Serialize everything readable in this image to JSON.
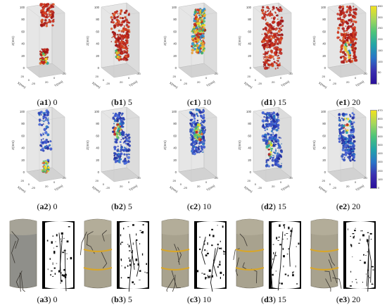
{
  "rows": [
    {
      "kind": "scatter3d",
      "captions": [
        {
          "id": "a1",
          "label": "0"
        },
        {
          "id": "b1",
          "label": "5"
        },
        {
          "id": "c1",
          "label": "10"
        },
        {
          "id": "d1",
          "label": "15"
        },
        {
          "id": "e1",
          "label": "20"
        }
      ],
      "colorbar_ticks": [
        "650",
        "300",
        "250",
        "200",
        "150",
        "100",
        "50",
        "0"
      ]
    },
    {
      "kind": "scatter3d",
      "captions": [
        {
          "id": "a2",
          "label": "0"
        },
        {
          "id": "b2",
          "label": "5"
        },
        {
          "id": "c2",
          "label": "10"
        },
        {
          "id": "d2",
          "label": "15"
        },
        {
          "id": "e2",
          "label": "20"
        }
      ],
      "colorbar_ticks": [
        "870",
        "800",
        "700",
        "600",
        "500",
        "400",
        "300",
        "200",
        "100",
        "0"
      ]
    },
    {
      "kind": "photo",
      "captions": [
        {
          "id": "a3",
          "label": "0"
        },
        {
          "id": "b3",
          "label": "5"
        },
        {
          "id": "c3",
          "label": "10"
        },
        {
          "id": "d3",
          "label": "15"
        },
        {
          "id": "e3",
          "label": "20"
        }
      ]
    }
  ],
  "axes": {
    "z_label": "Z(mm)",
    "x_label": "X(mm)",
    "y_label": "Y(mm)",
    "z_ticks": [
      "100",
      "80",
      "60",
      "40",
      "20",
      "0"
    ],
    "x_ticks": [
      "20",
      "0",
      "-20"
    ],
    "y_ticks": [
      "20",
      "0",
      "-20"
    ]
  },
  "colors": {
    "row1_dominant": "#c0281e",
    "row2_dominant": "#2a3fb8"
  }
}
